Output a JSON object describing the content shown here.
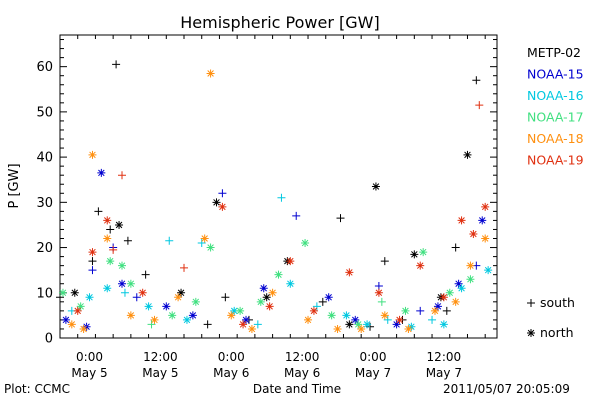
{
  "footer": {
    "left": "Plot: CCMC",
    "right": "2011/05/07 20:05:09"
  },
  "chart_data": {
    "type": "scatter",
    "title": "Hemispheric Power [GW]",
    "xlabel": "Date and Time",
    "ylabel": "P [GW]",
    "xlim": [
      "2011-05-04T19:00",
      "2011-05-07T21:00"
    ],
    "ylim": [
      0,
      67
    ],
    "yticks": [
      0,
      10,
      20,
      30,
      40,
      50,
      60
    ],
    "xticks": [
      {
        "t": "2011-05-05T00:00",
        "top": "0:00",
        "bottom": "May 5"
      },
      {
        "t": "2011-05-05T12:00",
        "top": "12:00",
        "bottom": "May 5"
      },
      {
        "t": "2011-05-06T00:00",
        "top": "0:00",
        "bottom": "May 6"
      },
      {
        "t": "2011-05-06T12:00",
        "top": "12:00",
        "bottom": "May 6"
      },
      {
        "t": "2011-05-07T00:00",
        "top": "0:00",
        "bottom": "May 7"
      },
      {
        "t": "2011-05-07T12:00",
        "top": "12:00",
        "bottom": "May 7"
      }
    ],
    "legend": {
      "placement": "right",
      "series": [
        "METP-02",
        "NOAA-15",
        "NOAA-16",
        "NOAA-17",
        "NOAA-18",
        "NOAA-19"
      ],
      "markers": [
        {
          "symbol": "+",
          "label": "south"
        },
        {
          "symbol": "*",
          "label": "north"
        }
      ]
    },
    "series": [
      {
        "name": "METP-02",
        "color": "#000000",
        "points": [
          [
            "2011-05-04T19:00",
            "+",
            9
          ],
          [
            "2011-05-04T21:30",
            "*",
            10
          ],
          [
            "2011-05-05T00:30",
            "+",
            17
          ],
          [
            "2011-05-05T01:30",
            "+",
            28
          ],
          [
            "2011-05-05T03:30",
            "+",
            24
          ],
          [
            "2011-05-05T04:30",
            "+",
            60.5
          ],
          [
            "2011-05-05T05:00",
            "*",
            25
          ],
          [
            "2011-05-05T06:30",
            "+",
            21.5
          ],
          [
            "2011-05-05T09:30",
            "+",
            14
          ],
          [
            "2011-05-05T15:30",
            "*",
            10
          ],
          [
            "2011-05-05T20:00",
            "+",
            3
          ],
          [
            "2011-05-05T21:30",
            "*",
            30
          ],
          [
            "2011-05-05T23:00",
            "+",
            9
          ],
          [
            "2011-05-06T03:00",
            "+",
            4
          ],
          [
            "2011-05-06T06:00",
            "*",
            9
          ],
          [
            "2011-05-06T09:30",
            "*",
            17
          ],
          [
            "2011-05-06T15:30",
            "+",
            8
          ],
          [
            "2011-05-06T18:30",
            "+",
            26.5
          ],
          [
            "2011-05-06T20:00",
            "*",
            3
          ],
          [
            "2011-05-06T23:30",
            "+",
            2.5
          ],
          [
            "2011-05-07T00:30",
            "*",
            33.5
          ],
          [
            "2011-05-07T02:00",
            "+",
            17
          ],
          [
            "2011-05-07T05:00",
            "+",
            4
          ],
          [
            "2011-05-07T07:00",
            "*",
            18.5
          ],
          [
            "2011-05-07T11:30",
            "*",
            9
          ],
          [
            "2011-05-07T14:00",
            "+",
            20
          ],
          [
            "2011-05-07T16:00",
            "*",
            40.5
          ],
          [
            "2011-05-07T17:30",
            "+",
            57
          ],
          [
            "2011-05-07T12:30",
            "+",
            6
          ]
        ]
      },
      {
        "name": "NOAA-15",
        "color": "#0000d0",
        "points": [
          [
            "2011-05-04T20:00",
            "*",
            4
          ],
          [
            "2011-05-04T23:30",
            "*",
            2.5
          ],
          [
            "2011-05-05T00:30",
            "+",
            15
          ],
          [
            "2011-05-05T02:00",
            "*",
            36.5
          ],
          [
            "2011-05-05T04:00",
            "+",
            20
          ],
          [
            "2011-05-05T05:30",
            "*",
            12
          ],
          [
            "2011-05-05T08:00",
            "+",
            9
          ],
          [
            "2011-05-05T13:00",
            "*",
            7
          ],
          [
            "2011-05-05T17:30",
            "*",
            5
          ],
          [
            "2011-05-05T22:30",
            "+",
            32
          ],
          [
            "2011-05-06T02:30",
            "*",
            4
          ],
          [
            "2011-05-06T05:30",
            "*",
            11
          ],
          [
            "2011-05-06T11:00",
            "+",
            27
          ],
          [
            "2011-05-06T16:30",
            "*",
            9
          ],
          [
            "2011-05-06T21:00",
            "*",
            4
          ],
          [
            "2011-05-07T01:00",
            "+",
            11.5
          ],
          [
            "2011-05-07T04:00",
            "*",
            3
          ],
          [
            "2011-05-07T08:00",
            "+",
            6
          ],
          [
            "2011-05-07T11:00",
            "*",
            7
          ],
          [
            "2011-05-07T14:30",
            "*",
            12
          ],
          [
            "2011-05-07T17:30",
            "+",
            16
          ],
          [
            "2011-05-07T18:30",
            "*",
            26
          ]
        ]
      },
      {
        "name": "NOAA-16",
        "color": "#00c8e0",
        "points": [
          [
            "2011-05-04T21:00",
            "+",
            6
          ],
          [
            "2011-05-05T00:00",
            "*",
            9
          ],
          [
            "2011-05-05T03:00",
            "*",
            11
          ],
          [
            "2011-05-05T06:00",
            "+",
            10
          ],
          [
            "2011-05-05T10:00",
            "*",
            7
          ],
          [
            "2011-05-05T13:30",
            "+",
            21.5
          ],
          [
            "2011-05-05T16:30",
            "*",
            4
          ],
          [
            "2011-05-05T19:00",
            "+",
            21
          ],
          [
            "2011-05-06T00:30",
            "*",
            6
          ],
          [
            "2011-05-06T04:30",
            "+",
            3
          ],
          [
            "2011-05-06T08:30",
            "+",
            31
          ],
          [
            "2011-05-06T10:00",
            "*",
            12
          ],
          [
            "2011-05-06T14:30",
            "+",
            7
          ],
          [
            "2011-05-06T19:30",
            "*",
            5
          ],
          [
            "2011-05-06T23:00",
            "*",
            3
          ],
          [
            "2011-05-07T02:30",
            "+",
            4
          ],
          [
            "2011-05-07T06:30",
            "*",
            2.5
          ],
          [
            "2011-05-07T10:00",
            "+",
            4
          ],
          [
            "2011-05-07T12:00",
            "*",
            3
          ],
          [
            "2011-05-07T15:00",
            "*",
            11
          ],
          [
            "2011-05-07T19:30",
            "*",
            15
          ]
        ]
      },
      {
        "name": "NOAA-17",
        "color": "#40e080",
        "points": [
          [
            "2011-05-04T19:30",
            "*",
            10
          ],
          [
            "2011-05-04T22:30",
            "*",
            7
          ],
          [
            "2011-05-05T03:30",
            "*",
            17
          ],
          [
            "2011-05-05T05:30",
            "*",
            16
          ],
          [
            "2011-05-05T07:00",
            "*",
            12
          ],
          [
            "2011-05-05T10:30",
            "+",
            3
          ],
          [
            "2011-05-05T14:00",
            "*",
            5
          ],
          [
            "2011-05-05T18:00",
            "*",
            8
          ],
          [
            "2011-05-05T20:30",
            "*",
            20
          ],
          [
            "2011-05-06T01:30",
            "*",
            6
          ],
          [
            "2011-05-06T05:00",
            "*",
            8
          ],
          [
            "2011-05-06T08:00",
            "*",
            14
          ],
          [
            "2011-05-06T12:30",
            "*",
            21
          ],
          [
            "2011-05-06T17:00",
            "*",
            5
          ],
          [
            "2011-05-06T21:30",
            "*",
            3
          ],
          [
            "2011-05-07T01:30",
            "+",
            8
          ],
          [
            "2011-05-07T05:30",
            "*",
            6
          ],
          [
            "2011-05-07T08:30",
            "*",
            19
          ],
          [
            "2011-05-07T13:00",
            "*",
            10
          ],
          [
            "2011-05-07T16:30",
            "*",
            13
          ]
        ]
      },
      {
        "name": "NOAA-18",
        "color": "#ff9010",
        "points": [
          [
            "2011-05-04T21:00",
            "*",
            3
          ],
          [
            "2011-05-04T23:00",
            "*",
            2
          ],
          [
            "2011-05-05T00:30",
            "*",
            40.5
          ],
          [
            "2011-05-05T03:00",
            "*",
            22
          ],
          [
            "2011-05-05T07:00",
            "*",
            5
          ],
          [
            "2011-05-05T11:00",
            "*",
            4
          ],
          [
            "2011-05-05T15:00",
            "*",
            9
          ],
          [
            "2011-05-05T19:30",
            "*",
            22
          ],
          [
            "2011-05-05T20:30",
            "*",
            58.5
          ],
          [
            "2011-05-06T00:00",
            "*",
            5
          ],
          [
            "2011-05-06T03:30",
            "*",
            2
          ],
          [
            "2011-05-06T07:00",
            "*",
            10
          ],
          [
            "2011-05-06T13:00",
            "*",
            4
          ],
          [
            "2011-05-06T18:00",
            "*",
            2
          ],
          [
            "2011-05-06T22:00",
            "*",
            2
          ],
          [
            "2011-05-07T02:00",
            "*",
            5
          ],
          [
            "2011-05-07T06:00",
            "*",
            2
          ],
          [
            "2011-05-07T10:30",
            "*",
            6
          ],
          [
            "2011-05-07T14:00",
            "*",
            8
          ],
          [
            "2011-05-07T16:30",
            "*",
            16
          ],
          [
            "2011-05-07T19:00",
            "*",
            22
          ]
        ]
      },
      {
        "name": "NOAA-19",
        "color": "#e03010",
        "points": [
          [
            "2011-05-04T22:00",
            "*",
            6
          ],
          [
            "2011-05-05T00:30",
            "*",
            19
          ],
          [
            "2011-05-05T03:00",
            "*",
            26
          ],
          [
            "2011-05-05T04:00",
            "+",
            19.5
          ],
          [
            "2011-05-05T05:30",
            "+",
            36
          ],
          [
            "2011-05-05T09:00",
            "*",
            10
          ],
          [
            "2011-05-05T16:00",
            "+",
            15.5
          ],
          [
            "2011-05-05T22:30",
            "*",
            29
          ],
          [
            "2011-05-06T02:00",
            "*",
            3
          ],
          [
            "2011-05-06T06:30",
            "*",
            7
          ],
          [
            "2011-05-06T10:00",
            "*",
            17
          ],
          [
            "2011-05-06T14:00",
            "*",
            6
          ],
          [
            "2011-05-06T20:00",
            "*",
            14.5
          ],
          [
            "2011-05-07T01:00",
            "*",
            10
          ],
          [
            "2011-05-07T04:30",
            "*",
            4
          ],
          [
            "2011-05-07T08:00",
            "*",
            16
          ],
          [
            "2011-05-07T12:00",
            "*",
            9
          ],
          [
            "2011-05-07T15:00",
            "*",
            26
          ],
          [
            "2011-05-07T17:00",
            "*",
            23
          ],
          [
            "2011-05-07T18:00",
            "+",
            51.5
          ],
          [
            "2011-05-07T19:00",
            "*",
            29
          ]
        ]
      }
    ]
  }
}
